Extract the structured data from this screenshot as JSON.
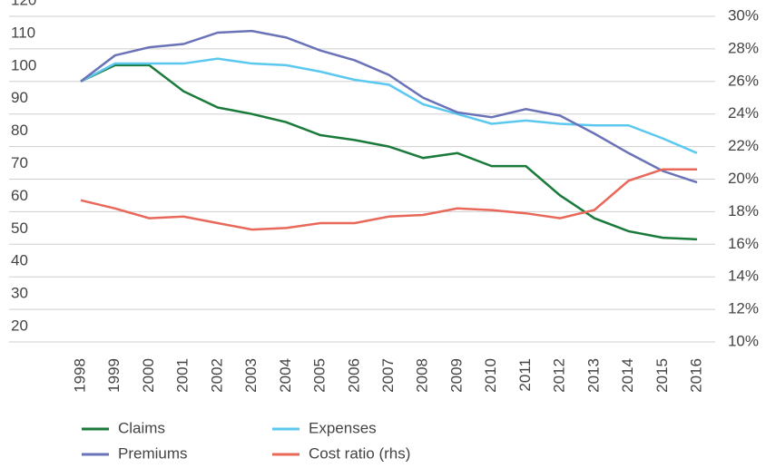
{
  "chart_data": {
    "type": "line",
    "categories": [
      "1998",
      "1999",
      "2000",
      "2001",
      "2002",
      "2003",
      "2004",
      "2005",
      "2006",
      "2007",
      "2008",
      "2009",
      "2010",
      "2011",
      "2012",
      "2013",
      "2014",
      "2015",
      "2016"
    ],
    "series": [
      {
        "name": "Claims",
        "color": "#1a7a3a",
        "values": [
          100,
          105,
          105,
          97,
          92,
          90,
          87.5,
          83.5,
          82,
          80,
          76.5,
          78,
          74,
          74,
          65,
          58,
          54,
          52,
          51.5
        ]
      },
      {
        "name": "Expenses",
        "color": "#5bc8f0",
        "values": [
          100,
          105.5,
          105.5,
          105.5,
          107,
          105.5,
          105,
          103,
          100.5,
          99,
          93,
          90,
          87,
          88,
          87,
          86.5,
          86.5,
          82.5,
          78
        ]
      },
      {
        "name": "Premiums",
        "color": "#6b73b8",
        "values": [
          100,
          108,
          110.5,
          111.5,
          115,
          115.5,
          113.5,
          109.5,
          106.5,
          102,
          95,
          90.5,
          89,
          91.5,
          89.5,
          84,
          78,
          72.5,
          69
        ]
      },
      {
        "name": "Cost ratio (rhs)",
        "color": "#e8685a",
        "axis": "y2",
        "values": [
          18.7,
          18.2,
          17.6,
          17.7,
          17.3,
          16.9,
          17.0,
          17.3,
          17.3,
          17.7,
          17.8,
          18.2,
          18.1,
          17.9,
          17.6,
          18.1,
          19.9,
          20.6,
          20.6
        ]
      }
    ],
    "ylim": [
      20,
      120
    ],
    "yticks": [
      20,
      30,
      40,
      50,
      60,
      70,
      80,
      90,
      100,
      110,
      120
    ],
    "y2lim": [
      10,
      30
    ],
    "y2ticks": [
      {
        "value": 10,
        "label": "10%"
      },
      {
        "value": 12,
        "label": "12%"
      },
      {
        "value": 14,
        "label": "14%"
      },
      {
        "value": 16,
        "label": "16%"
      },
      {
        "value": 18,
        "label": "18%"
      },
      {
        "value": 20,
        "label": "20%"
      },
      {
        "value": 22,
        "label": "22%"
      },
      {
        "value": 24,
        "label": "24%"
      },
      {
        "value": 26,
        "label": "26%"
      },
      {
        "value": 28,
        "label": "28%"
      },
      {
        "value": 30,
        "label": "30%"
      }
    ],
    "grid": true
  }
}
